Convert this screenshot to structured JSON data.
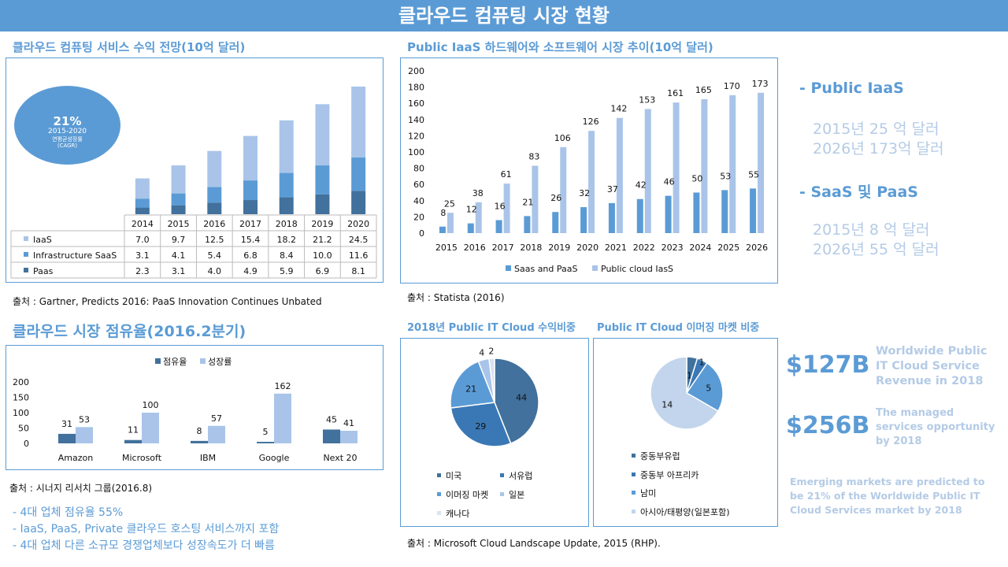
{
  "title": "클라우드 컴퓨팅 시장 현황",
  "colors": {
    "accent": "#5b9bd5",
    "dark": "#41719c",
    "mid": "#5b9bd5",
    "light": "#a9c4e8",
    "faint": "#b4cbe6"
  },
  "section1": {
    "title": "클라우드 컴퓨팅 서비스 수익 전망(10억 달러)",
    "bubble": {
      "value": "21%",
      "years": "2015-2020",
      "label_ko": "연평균성장률",
      "label_en": "(CAGR)"
    },
    "source": "출처 : Gartner,  Predicts  2016: PaaS  Innovation  Continues  Unbated"
  },
  "section2": {
    "title": "Public IaaS 하드웨어와 소프트웨어 시장 추이(10억 달러)",
    "source": "출처 : Statista  (2016)"
  },
  "side_info": {
    "iaas_title": "- Public IaaS",
    "iaas_lines": [
      "2015년 25 억 달러",
      "2026년 173억 달러"
    ],
    "saas_title": "- SaaS 및 PaaS",
    "saas_lines": [
      "2015년 8 억 달러",
      "2026년 55 억 달러"
    ]
  },
  "section3": {
    "title": "클라우드 시장 점유율(2016.2분기)",
    "source": "출처 : 시너지 리서치 그룹(2016.8)",
    "bullets": [
      "-   4대 업체 점유율 55%",
      "-   IaaS, PaaS, Private 클라우드 호스팅 서비스까지 포함",
      "-   4대 업체 다른 소규모 경쟁업체보다 성장속도가 더 빠름"
    ]
  },
  "section4": {
    "title": "2018년 Public IT Cloud 수익비중",
    "source": "출처 : Microsoft Cloud  Landscape Update,  2015 (RHP)."
  },
  "section5": {
    "title": "Public IT Cloud 이머징 마켓 비중"
  },
  "stats": {
    "stat1_value": "$127B",
    "stat1_label": [
      "Worldwide Public",
      "IT Cloud Service",
      "Revenue in 2018"
    ],
    "stat2_value": "$256B",
    "stat2_label": [
      "The managed",
      "services opportunity",
      "by 2018"
    ],
    "emerging": [
      "Emerging markets are predicted to",
      "be 21% of the Worldwide Public IT",
      "Cloud Services market by 2018"
    ]
  },
  "chart_data": [
    {
      "type": "bar",
      "stacked": true,
      "title": "클라우드 컴퓨팅 서비스 수익 전망(10억 달러)",
      "categories": [
        "2014",
        "2015",
        "2016",
        "2017",
        "2018",
        "2019",
        "2020"
      ],
      "series": [
        {
          "name": "IaaS",
          "values": [
            7.0,
            9.7,
            12.5,
            15.4,
            18.2,
            21.2,
            24.5
          ],
          "value_labels": [
            "7.0",
            "9.7",
            "12.5",
            "15.4",
            "18.2",
            "21.2",
            "24.5"
          ]
        },
        {
          "name": "Infrastructure SaaS",
          "values": [
            3.1,
            4.1,
            5.4,
            6.8,
            8.4,
            10.0,
            11.6
          ],
          "value_labels": [
            "3.1",
            "4.1",
            "5.4",
            "6.8",
            "8.4",
            "10.0",
            "11.6"
          ]
        },
        {
          "name": "Paas",
          "values": [
            2.3,
            3.1,
            4.0,
            4.9,
            5.9,
            6.9,
            8.1
          ],
          "value_labels": [
            "2.3",
            "3.1",
            "4.0",
            "4.9",
            "5.9",
            "6.9",
            "8.1"
          ]
        }
      ],
      "ylim": [
        0,
        45
      ]
    },
    {
      "type": "bar",
      "title": "Public IaaS 하드웨어와 소프트웨어 시장 추이(10억 달러)",
      "categories": [
        "2015",
        "2016",
        "2017",
        "2018",
        "2019",
        "2020",
        "2021",
        "2022",
        "2023",
        "2024",
        "2025",
        "2026"
      ],
      "series": [
        {
          "name": "Saas and PaaS",
          "values": [
            8,
            12,
            16,
            21,
            26,
            32,
            37,
            42,
            46,
            50,
            53,
            55
          ]
        },
        {
          "name": "Public cloud IasS",
          "values": [
            25,
            38,
            61,
            83,
            106,
            126,
            142,
            153,
            161,
            165,
            170,
            173
          ]
        }
      ],
      "ylim": [
        0,
        200
      ],
      "yticks": [
        0,
        20,
        40,
        60,
        80,
        100,
        120,
        140,
        160,
        180,
        200
      ]
    },
    {
      "type": "bar",
      "title": "클라우드 시장 점유율(2016.2분기)",
      "categories": [
        "Amazon",
        "Microsoft",
        "IBM",
        "Google",
        "Next 20"
      ],
      "series": [
        {
          "name": "점유율",
          "values": [
            31,
            11,
            8,
            5,
            45
          ]
        },
        {
          "name": "성장률",
          "values": [
            53,
            100,
            57,
            162,
            41
          ]
        }
      ],
      "ylim": [
        0,
        200
      ],
      "yticks": [
        0,
        50,
        100,
        150,
        200
      ]
    },
    {
      "type": "pie",
      "title": "2018년 Public IT Cloud 수익비중",
      "labels": [
        "미국",
        "서유럽",
        "이머징 마켓",
        "일본",
        "캐나다"
      ],
      "values": [
        44,
        29,
        21,
        4,
        2
      ]
    },
    {
      "type": "pie",
      "title": "Public IT Cloud 이머징 마켓 비중",
      "labels": [
        "중동부유럽",
        "중동부 아프리카",
        "남미",
        "아시아/태평양(일본포함)"
      ],
      "values": [
        1,
        1,
        5,
        14
      ]
    }
  ]
}
